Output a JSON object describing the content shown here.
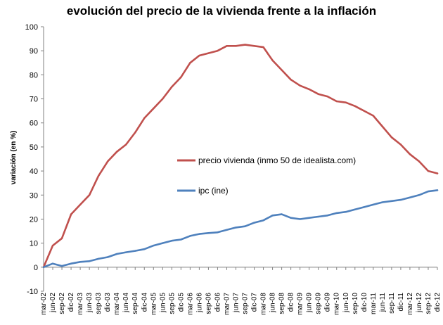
{
  "chart_data": {
    "type": "line",
    "title": "evolución del precio de la vivienda frente a la inflación",
    "xlabel": "",
    "ylabel": "variación (en %)",
    "ylim": [
      -10,
      100
    ],
    "yticks": [
      -10,
      0,
      10,
      20,
      30,
      40,
      50,
      60,
      70,
      80,
      90,
      100
    ],
    "grid": false,
    "legend": "inside-center",
    "categories": [
      "mar-02",
      "jun-02",
      "sep-02",
      "dic-02",
      "mar-03",
      "jun-03",
      "sep-03",
      "dic-03",
      "mar-04",
      "jun-04",
      "sep-04",
      "dic-04",
      "mar-05",
      "jun-05",
      "sep-05",
      "dic-05",
      "mar-06",
      "jun-06",
      "sep-06",
      "dic-06",
      "mar-07",
      "jun-07",
      "sep-07",
      "dic-07",
      "mar-08",
      "jun-08",
      "sep-08",
      "dic-08",
      "mar-09",
      "jun-09",
      "sep-09",
      "dic-09",
      "mar-10",
      "jun-10",
      "sep-10",
      "dic-10",
      "mar-11",
      "jun-11",
      "sep-11",
      "dic-11",
      "mar-12",
      "jun-12",
      "sep-12",
      "dic-12"
    ],
    "series": [
      {
        "name": "precio vivienda (inmo 50 de idealista.com)",
        "color": "#c0504d",
        "values": [
          0,
          9,
          12,
          22,
          26,
          30,
          38,
          44,
          48,
          51,
          56,
          62,
          66,
          70,
          75,
          79,
          85,
          88,
          89,
          90,
          92,
          92,
          92.5,
          92,
          91.5,
          86,
          82,
          78,
          75.5,
          74,
          72,
          71,
          69,
          68.5,
          67,
          65,
          63,
          58.5,
          54,
          51,
          47,
          44,
          40,
          39
        ]
      },
      {
        "name": "ipc (ine)",
        "color": "#4f81bd",
        "values": [
          0,
          1.5,
          0.5,
          1.5,
          2.2,
          2.5,
          3.5,
          4.2,
          5.5,
          6.2,
          6.8,
          7.5,
          9,
          10,
          11,
          11.5,
          13,
          13.8,
          14.2,
          14.5,
          15.5,
          16.5,
          17,
          18.5,
          19.5,
          21.5,
          22,
          20.5,
          20,
          20.5,
          21,
          21.5,
          22.5,
          23,
          24,
          25,
          26,
          27,
          27.5,
          28,
          29,
          30,
          31.5,
          32
        ]
      }
    ]
  }
}
